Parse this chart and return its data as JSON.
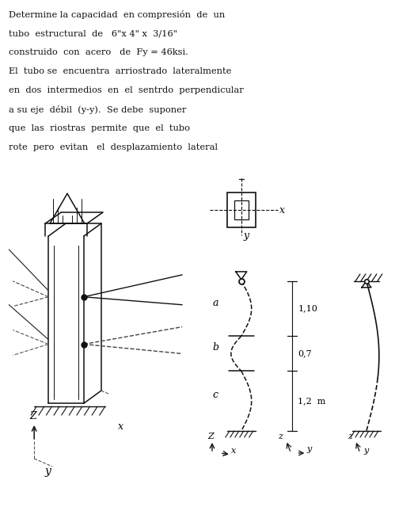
{
  "bg_color": "#ffffff",
  "text_color": "#111111",
  "title_lines": [
    "Determine la capacidad  en compresión  de  un",
    "tubo  estructural  de   6\"x 4\" x  3/16\"",
    "construido  con  acero   de  Fy = 46ksi.",
    "El  tubo se  encuentra  arriostrado  lateralmente",
    "en  dos  intermedios  en  el  sentrdo  perpendicular",
    "a su eje  débil  (y-y).  Se debe  suponer",
    "que  las  riostras  permite  que  el  tubo",
    "rote  pero  evitan   el  desplazamiento  lateral"
  ],
  "fig_width": 5.23,
  "fig_height": 6.4,
  "dpi": 100
}
